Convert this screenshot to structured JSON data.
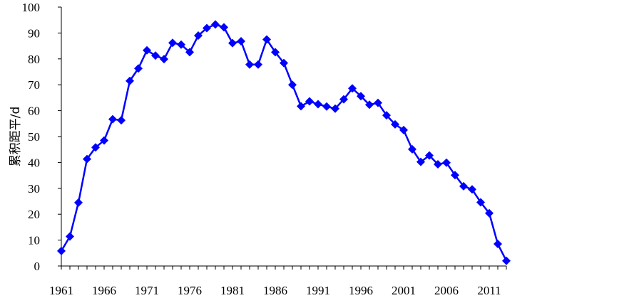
{
  "chart_data": {
    "type": "line",
    "title": "",
    "xlabel": "",
    "ylabel": "累积距平/d",
    "xlim": [
      1961,
      2013
    ],
    "ylim": [
      0,
      100
    ],
    "y_ticks": [
      "0",
      "10",
      "20",
      "30",
      "40",
      "50",
      "60",
      "70",
      "80",
      "90",
      "100"
    ],
    "x_ticks": [
      "1961",
      "1966",
      "1971",
      "1976",
      "1981",
      "1986",
      "1991",
      "1996",
      "2001",
      "2006",
      "2011"
    ],
    "grid": false,
    "legend": "none",
    "line_color": "#0000FF",
    "marker": "diamond",
    "series": [
      {
        "x": [
          1961,
          1962,
          1963,
          1964,
          1965,
          1966,
          1967,
          1968,
          1969,
          1970,
          1971,
          1972,
          1973,
          1974,
          1975,
          1976,
          1977,
          1978,
          1979,
          1980,
          1981,
          1982,
          1983,
          1984,
          1985,
          1986,
          1987,
          1988,
          1989,
          1990,
          1991,
          1992,
          1993,
          1994,
          1995,
          1996,
          1997,
          1998,
          1999,
          2000,
          2001,
          2002,
          2003,
          2004,
          2005,
          2006,
          2007,
          2008,
          2009,
          2010,
          2011,
          2012,
          2013
        ],
        "values": [
          5.8,
          11.4,
          24.5,
          41.3,
          45.8,
          48.5,
          56.7,
          56.3,
          71.5,
          76.3,
          83.3,
          81.3,
          79.9,
          86.2,
          85.5,
          82.6,
          89.0,
          91.9,
          93.3,
          92.2,
          86.1,
          86.8,
          77.8,
          77.8,
          87.5,
          82.6,
          78.4,
          70.0,
          61.7,
          63.6,
          62.5,
          61.6,
          60.8,
          64.4,
          68.6,
          65.6,
          62.3,
          63.0,
          58.2,
          54.7,
          52.5,
          45.1,
          40.2,
          42.7,
          39.3,
          39.9,
          35.1,
          30.8,
          29.6,
          24.6,
          20.4,
          8.5,
          2.0
        ]
      }
    ]
  }
}
